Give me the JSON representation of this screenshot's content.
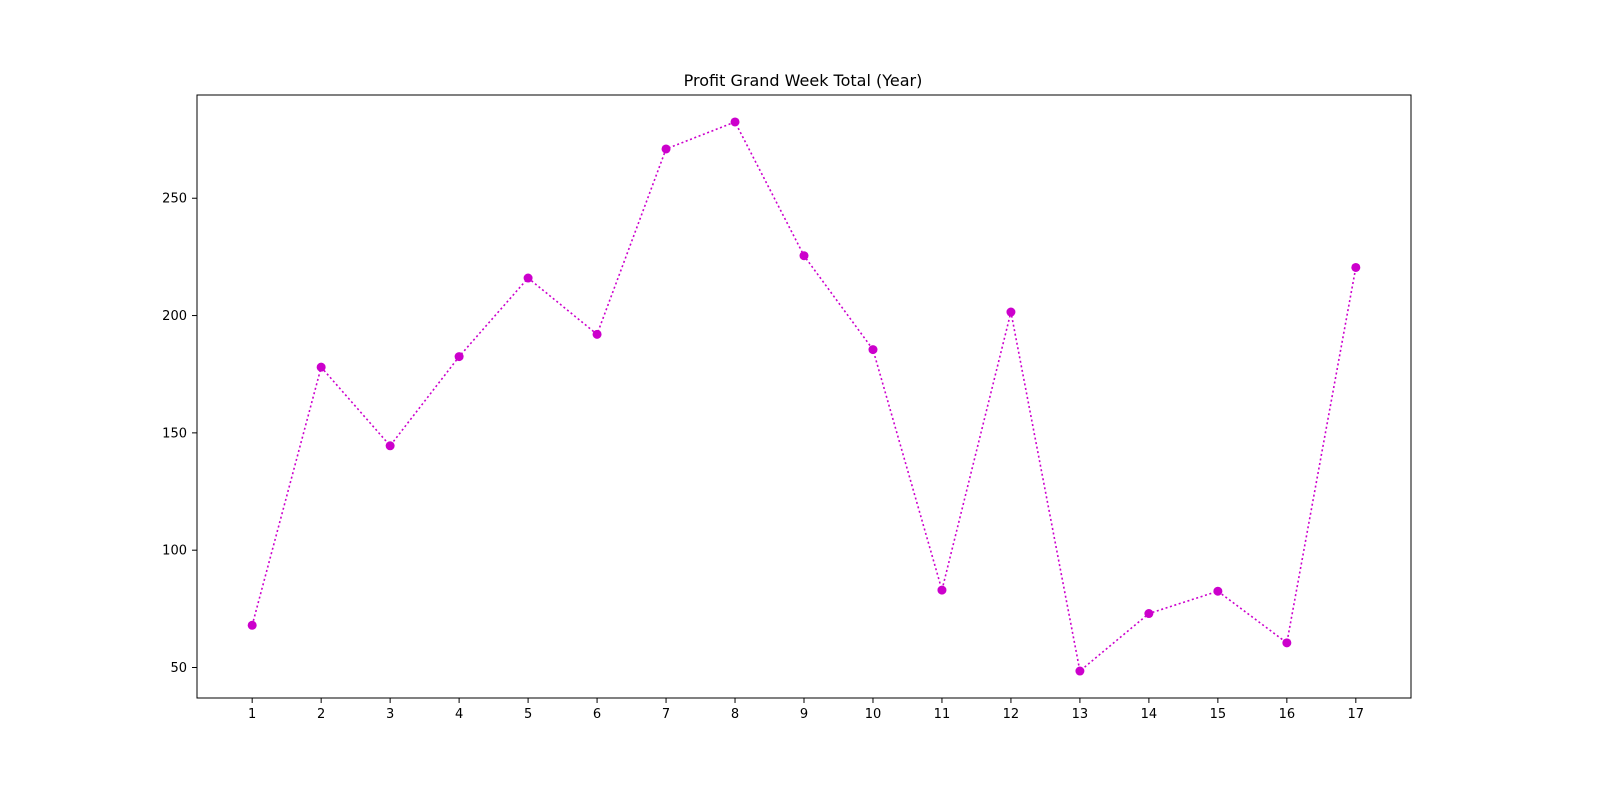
{
  "chart_data": {
    "type": "line",
    "title": "Profit Grand Week Total (Year)",
    "xlabel": "",
    "ylabel": "",
    "x": [
      1,
      2,
      3,
      4,
      5,
      6,
      7,
      8,
      9,
      10,
      11,
      12,
      13,
      14,
      15,
      16,
      17
    ],
    "series": [
      {
        "values": [
          68,
          178,
          144.5,
          182.5,
          216,
          192,
          271,
          282.5,
          225.5,
          185.5,
          83,
          201.5,
          48.5,
          73,
          82.5,
          60.5,
          220.5
        ],
        "color": "#cc00cc",
        "line_style": "dotted",
        "marker": "circle"
      }
    ],
    "xticks": [
      1,
      2,
      3,
      4,
      5,
      6,
      7,
      8,
      9,
      10,
      11,
      12,
      13,
      14,
      15,
      16,
      17
    ],
    "yticks": [
      50,
      100,
      150,
      200,
      250
    ],
    "xlim": [
      0.2,
      17.8
    ],
    "ylim": [
      37,
      294
    ],
    "grid": false,
    "legend": "none"
  }
}
